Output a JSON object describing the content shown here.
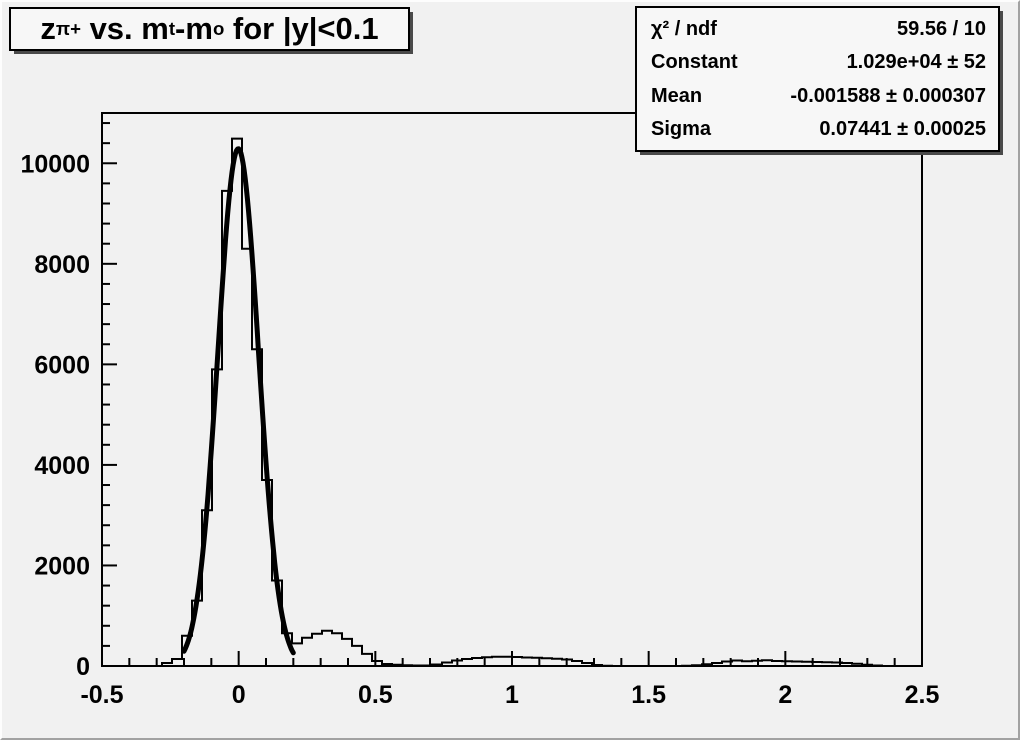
{
  "title": {
    "text": "z_{π+} vs. m_{t}-m_{o} for |y|<0.1",
    "segments": [
      {
        "text": "z",
        "sub": false
      },
      {
        "text": "π+",
        "sub": true
      },
      {
        "text": " vs. m",
        "sub": false
      },
      {
        "text": "t",
        "sub": true
      },
      {
        "text": "-m",
        "sub": false
      },
      {
        "text": "o",
        "sub": true
      },
      {
        "text": " for |y|<0.1",
        "sub": false
      }
    ]
  },
  "stats": {
    "rows": [
      {
        "label": "χ² / ndf",
        "value": "59.56 / 10"
      },
      {
        "label": "Constant",
        "value": "1.029e+04 ± 52"
      },
      {
        "label": "Mean",
        "value": "-0.001588 ± 0.000307"
      },
      {
        "label": "Sigma",
        "value": "0.07441 ± 0.00025"
      }
    ]
  },
  "chart_data": {
    "type": "histogram",
    "title": "z_{π+} vs. m_{t}-m_{o} for |y|<0.1",
    "xlabel": "",
    "ylabel": "",
    "xlim": [
      -0.5,
      2.5
    ],
    "ylim": [
      0,
      11000
    ],
    "grid": false,
    "x_ticks_major": [
      -0.5,
      0,
      0.5,
      1,
      1.5,
      2,
      2.5
    ],
    "x_tick_labels": [
      "-0.5",
      "0",
      "0.5",
      "1",
      "1.5",
      "2",
      "2.5"
    ],
    "x_minor_step": 0.1,
    "y_ticks_major": [
      0,
      2000,
      4000,
      6000,
      8000,
      10000
    ],
    "y_tick_labels": [
      "0",
      "2000",
      "4000",
      "6000",
      "8000",
      "10000"
    ],
    "y_minor_step": 400,
    "bin_start": -0.5,
    "bin_width": 0.036585,
    "bin_counts": [
      0,
      0,
      0,
      0,
      0,
      0,
      60,
      140,
      600,
      1300,
      3100,
      5900,
      9450,
      10490,
      8300,
      6300,
      3700,
      1700,
      650,
      450,
      560,
      640,
      700,
      650,
      540,
      400,
      240,
      100,
      40,
      25,
      15,
      10,
      10,
      30,
      70,
      110,
      140,
      160,
      175,
      185,
      185,
      180,
      170,
      165,
      155,
      145,
      130,
      100,
      60,
      20,
      5,
      0,
      0,
      0,
      0,
      0,
      0,
      0,
      5,
      15,
      35,
      60,
      90,
      110,
      95,
      105,
      115,
      100,
      95,
      90,
      85,
      80,
      75,
      70,
      60,
      45,
      25,
      10,
      0,
      0,
      0,
      0
    ],
    "fit": {
      "shape": "gaussian",
      "constant": 10290,
      "mean": -0.001588,
      "sigma": 0.07441,
      "range": [
        -0.2,
        0.2
      ]
    },
    "colors": {
      "histogram_line": "#000000",
      "fit_line": "#000000",
      "frame_line": "#000000",
      "canvas_background": "#f1f1f1",
      "box_background": "#f7f7f7"
    },
    "legend_position": "none"
  }
}
